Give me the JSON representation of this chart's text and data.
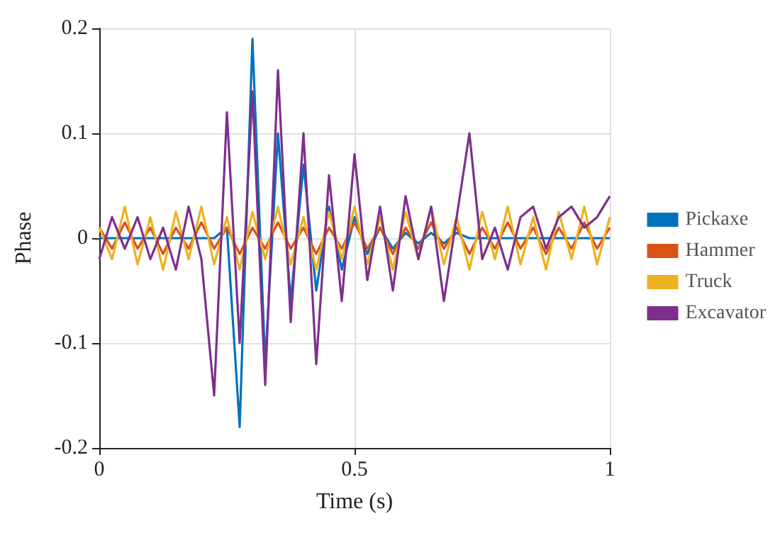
{
  "chart_data": {
    "type": "line",
    "xlabel": "Time (s)",
    "ylabel": "Phase",
    "xlim": [
      0,
      1
    ],
    "xticks": [
      0,
      0.5,
      1
    ],
    "ylim": [
      -0.2,
      0.2
    ],
    "yticks": [
      -0.2,
      -0.1,
      0,
      0.1,
      0.2
    ],
    "grid": true,
    "legend": "right",
    "marker": "none",
    "line_style": "solid",
    "x": [
      0,
      0.025,
      0.05,
      0.075,
      0.1,
      0.125,
      0.15,
      0.175,
      0.2,
      0.225,
      0.25,
      0.275,
      0.3,
      0.325,
      0.35,
      0.375,
      0.4,
      0.425,
      0.45,
      0.475,
      0.5,
      0.525,
      0.55,
      0.575,
      0.6,
      0.625,
      0.65,
      0.675,
      0.7,
      0.725,
      0.75,
      0.775,
      0.8,
      0.825,
      0.85,
      0.875,
      0.9,
      0.925,
      0.95,
      0.975,
      1
    ],
    "series": [
      {
        "name": "Pickaxe",
        "color": "#0072bd",
        "values": [
          0,
          0,
          0,
          0,
          0,
          0,
          0,
          0,
          0,
          0,
          0.01,
          -0.18,
          0.19,
          -0.12,
          0.1,
          -0.06,
          0.07,
          -0.05,
          0.03,
          -0.03,
          0.02,
          -0.015,
          0.01,
          -0.01,
          0.005,
          -0.005,
          0.005,
          -0.005,
          0.005,
          0,
          0,
          0,
          0,
          0,
          0,
          0,
          0,
          0,
          0,
          0,
          0
        ]
      },
      {
        "name": "Hammer",
        "color": "#d95319",
        "values": [
          0.01,
          -0.01,
          0.015,
          -0.01,
          0.01,
          -0.015,
          0.01,
          -0.01,
          0.015,
          -0.01,
          0.01,
          -0.015,
          0.01,
          -0.01,
          0.015,
          -0.01,
          0.01,
          -0.015,
          0.01,
          -0.01,
          0.015,
          -0.01,
          0.01,
          -0.015,
          0.01,
          -0.01,
          0.015,
          -0.01,
          0.01,
          -0.015,
          0.01,
          -0.01,
          0.015,
          -0.01,
          0.01,
          -0.015,
          0.01,
          -0.01,
          0.015,
          -0.01,
          0.01
        ]
      },
      {
        "name": "Truck",
        "color": "#edb120",
        "values": [
          0.01,
          -0.02,
          0.03,
          -0.025,
          0.02,
          -0.03,
          0.025,
          -0.02,
          0.03,
          -0.025,
          0.02,
          -0.03,
          0.025,
          -0.02,
          0.03,
          -0.025,
          0.02,
          -0.03,
          0.025,
          -0.02,
          0.03,
          -0.025,
          0.02,
          -0.03,
          0.025,
          -0.02,
          0.03,
          -0.025,
          0.02,
          -0.03,
          0.025,
          -0.02,
          0.03,
          -0.025,
          0.02,
          -0.03,
          0.025,
          -0.02,
          0.03,
          -0.025,
          0.02
        ]
      },
      {
        "name": "Excavator",
        "color": "#7e2f8e",
        "values": [
          -0.02,
          0.02,
          -0.01,
          0.02,
          -0.02,
          0.01,
          -0.03,
          0.03,
          -0.02,
          -0.15,
          0.12,
          -0.1,
          0.14,
          -0.14,
          0.16,
          -0.08,
          0.1,
          -0.12,
          0.06,
          -0.06,
          0.08,
          -0.04,
          0.03,
          -0.05,
          0.04,
          -0.02,
          0.03,
          -0.06,
          0.02,
          0.1,
          -0.02,
          0.01,
          -0.03,
          0.02,
          0.03,
          -0.01,
          0.02,
          0.03,
          0.01,
          0.02,
          0.04
        ]
      }
    ]
  }
}
